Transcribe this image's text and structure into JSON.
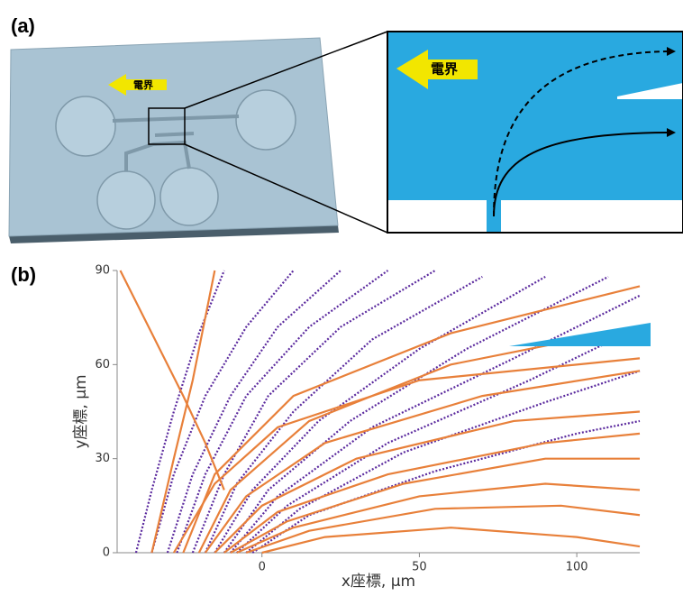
{
  "panels": {
    "a": {
      "label": "(a)",
      "chip_field": "電界",
      "zoom_field": "電界"
    },
    "b": {
      "label": "(b)"
    }
  },
  "chart_data": {
    "type": "line",
    "xlabel": "x座標, μm",
    "ylabel": "y座標, μm",
    "xlim": [
      -46,
      120
    ],
    "ylim": [
      0,
      90
    ],
    "xticks": [
      0,
      50,
      100
    ],
    "yticks": [
      0,
      30,
      60,
      90
    ],
    "series": [
      {
        "color": "#5b2a9e",
        "dashed": true,
        "x": [
          -40,
          -35,
          -28,
          -20,
          -12
        ],
        "values": [
          0,
          20,
          45,
          70,
          90
        ]
      },
      {
        "color": "#5b2a9e",
        "dashed": true,
        "x": [
          -35,
          -28,
          -18,
          -5,
          10
        ],
        "values": [
          0,
          25,
          50,
          72,
          90
        ]
      },
      {
        "color": "#5b2a9e",
        "dashed": true,
        "x": [
          -30,
          -22,
          -10,
          5,
          25
        ],
        "values": [
          0,
          25,
          50,
          72,
          90
        ]
      },
      {
        "color": "#5b2a9e",
        "dashed": true,
        "x": [
          -27,
          -18,
          -5,
          15,
          40
        ],
        "values": [
          0,
          25,
          50,
          72,
          90
        ]
      },
      {
        "color": "#5b2a9e",
        "dashed": true,
        "x": [
          -22,
          -12,
          2,
          25,
          55
        ],
        "values": [
          0,
          25,
          50,
          72,
          90
        ]
      },
      {
        "color": "#5b2a9e",
        "dashed": true,
        "x": [
          -18,
          -8,
          10,
          35,
          70
        ],
        "values": [
          0,
          22,
          45,
          68,
          88
        ]
      },
      {
        "color": "#5b2a9e",
        "dashed": true,
        "x": [
          -15,
          -3,
          18,
          50,
          90
        ],
        "values": [
          0,
          20,
          42,
          65,
          88
        ]
      },
      {
        "color": "#5b2a9e",
        "dashed": true,
        "x": [
          -12,
          2,
          28,
          65,
          110
        ],
        "values": [
          0,
          20,
          42,
          65,
          88
        ]
      },
      {
        "color": "#5b2a9e",
        "dashed": true,
        "x": [
          -10,
          5,
          35,
          80,
          120
        ],
        "values": [
          0,
          18,
          40,
          62,
          82
        ]
      },
      {
        "color": "#5b2a9e",
        "dashed": true,
        "x": [
          -8,
          8,
          40,
          85,
          120
        ],
        "values": [
          0,
          15,
          35,
          55,
          72
        ]
      },
      {
        "color": "#5b2a9e",
        "dashed": true,
        "x": [
          -5,
          12,
          45,
          90,
          120
        ],
        "values": [
          0,
          14,
          32,
          48,
          58
        ]
      },
      {
        "color": "#5b2a9e",
        "dashed": true,
        "x": [
          -3,
          15,
          55,
          100,
          120
        ],
        "values": [
          0,
          12,
          26,
          38,
          42
        ]
      },
      {
        "color": "#e8803a",
        "dashed": false,
        "x": [
          -45,
          -35,
          -25,
          -18,
          -12
        ],
        "values": [
          90,
          70,
          50,
          35,
          20
        ]
      },
      {
        "color": "#e8803a",
        "dashed": false,
        "x": [
          -35,
          -28,
          -22,
          -18,
          -15
        ],
        "values": [
          0,
          30,
          55,
          75,
          90
        ]
      },
      {
        "color": "#e8803a",
        "dashed": false,
        "x": [
          -25,
          -15,
          10,
          60,
          120
        ],
        "values": [
          0,
          25,
          50,
          70,
          85
        ]
      },
      {
        "color": "#e8803a",
        "dashed": false,
        "x": [
          -20,
          -10,
          15,
          60,
          120
        ],
        "values": [
          0,
          20,
          42,
          60,
          72
        ]
      },
      {
        "color": "#e8803a",
        "dashed": false,
        "x": [
          -18,
          -5,
          20,
          70,
          120
        ],
        "values": [
          0,
          18,
          35,
          50,
          58
        ]
      },
      {
        "color": "#e8803a",
        "dashed": false,
        "x": [
          -15,
          0,
          30,
          80,
          120
        ],
        "values": [
          0,
          15,
          30,
          42,
          45
        ]
      },
      {
        "color": "#e8803a",
        "dashed": false,
        "x": [
          -12,
          5,
          40,
          90,
          120
        ],
        "values": [
          0,
          13,
          25,
          35,
          38
        ]
      },
      {
        "color": "#e8803a",
        "dashed": false,
        "x": [
          -10,
          8,
          45,
          90,
          120
        ],
        "values": [
          0,
          10,
          22,
          30,
          30
        ]
      },
      {
        "color": "#e8803a",
        "dashed": false,
        "x": [
          -8,
          10,
          50,
          90,
          120
        ],
        "values": [
          0,
          8,
          18,
          22,
          20
        ]
      },
      {
        "color": "#e8803a",
        "dashed": false,
        "x": [
          -5,
          15,
          55,
          95,
          120
        ],
        "values": [
          0,
          7,
          14,
          15,
          12
        ]
      },
      {
        "color": "#e8803a",
        "dashed": false,
        "x": [
          0,
          20,
          60,
          100,
          120
        ],
        "values": [
          0,
          5,
          8,
          5,
          2
        ]
      },
      {
        "color": "#e8803a",
        "dashed": false,
        "x": [
          -28,
          -15,
          5,
          50,
          120
        ],
        "values": [
          0,
          22,
          40,
          55,
          62
        ]
      }
    ]
  }
}
